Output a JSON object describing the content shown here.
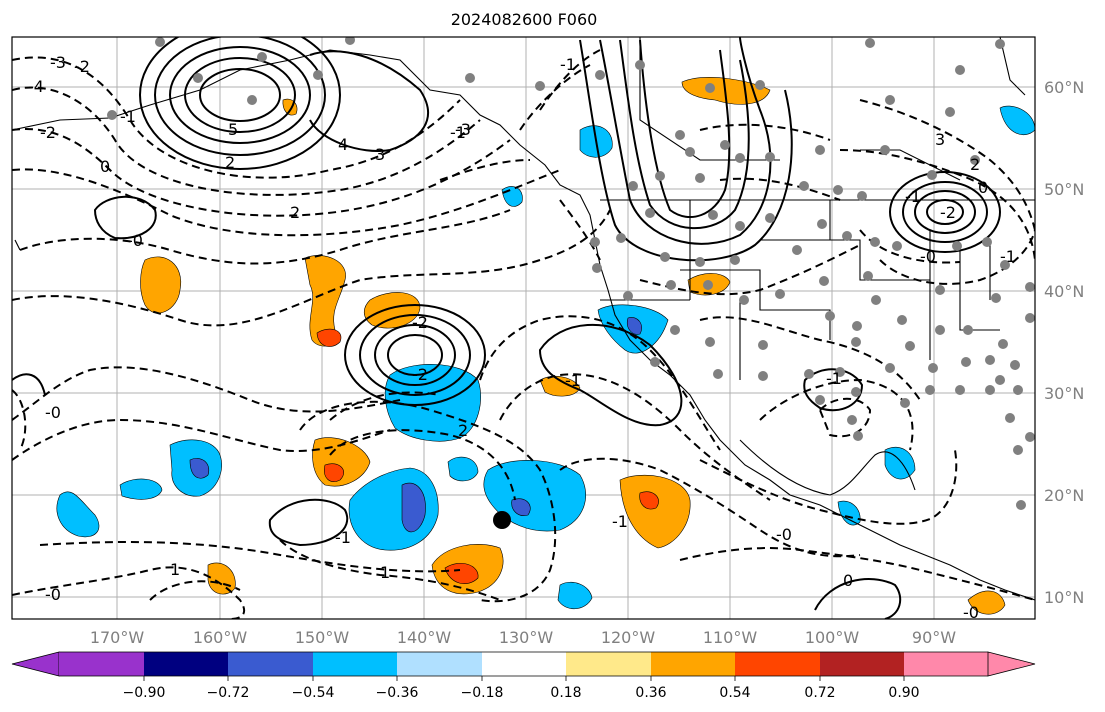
{
  "title": "2024082600 F060",
  "lat_labels": [
    "60°N",
    "50°N",
    "40°N",
    "30°N",
    "20°N",
    "10°N"
  ],
  "lon_labels": [
    "170°W",
    "160°W",
    "150°W",
    "140°W",
    "130°W",
    "120°W",
    "110°W",
    "100°W",
    "90°W"
  ],
  "colorbar": {
    "tick_labels": [
      "−0.90",
      "−0.72",
      "−0.54",
      "−0.36",
      "−0.18",
      "0.18",
      "0.36",
      "0.54",
      "0.72",
      "0.90"
    ],
    "colors": [
      "#9932cc",
      "#000080",
      "#3a5bd0",
      "#00bfff",
      "#b0e0ff",
      "#ffffff",
      "#ffe98a",
      "#ffa500",
      "#ff4500",
      "#b22222",
      "#ff88aa"
    ]
  },
  "contour_labels": [
    "-3",
    "-2",
    "-4",
    "-2",
    "-1",
    "0",
    "5",
    "4",
    "3",
    "2",
    "-1",
    "2",
    "-0",
    "3",
    "2",
    "-1",
    "-0",
    "-2",
    "-1",
    "0",
    "-1",
    "-2",
    "-2",
    "-3",
    "-1",
    "-1",
    "-0",
    "-0",
    "1",
    "-1",
    "1",
    "-0",
    "2",
    "0",
    "-0",
    "-1"
  ]
}
